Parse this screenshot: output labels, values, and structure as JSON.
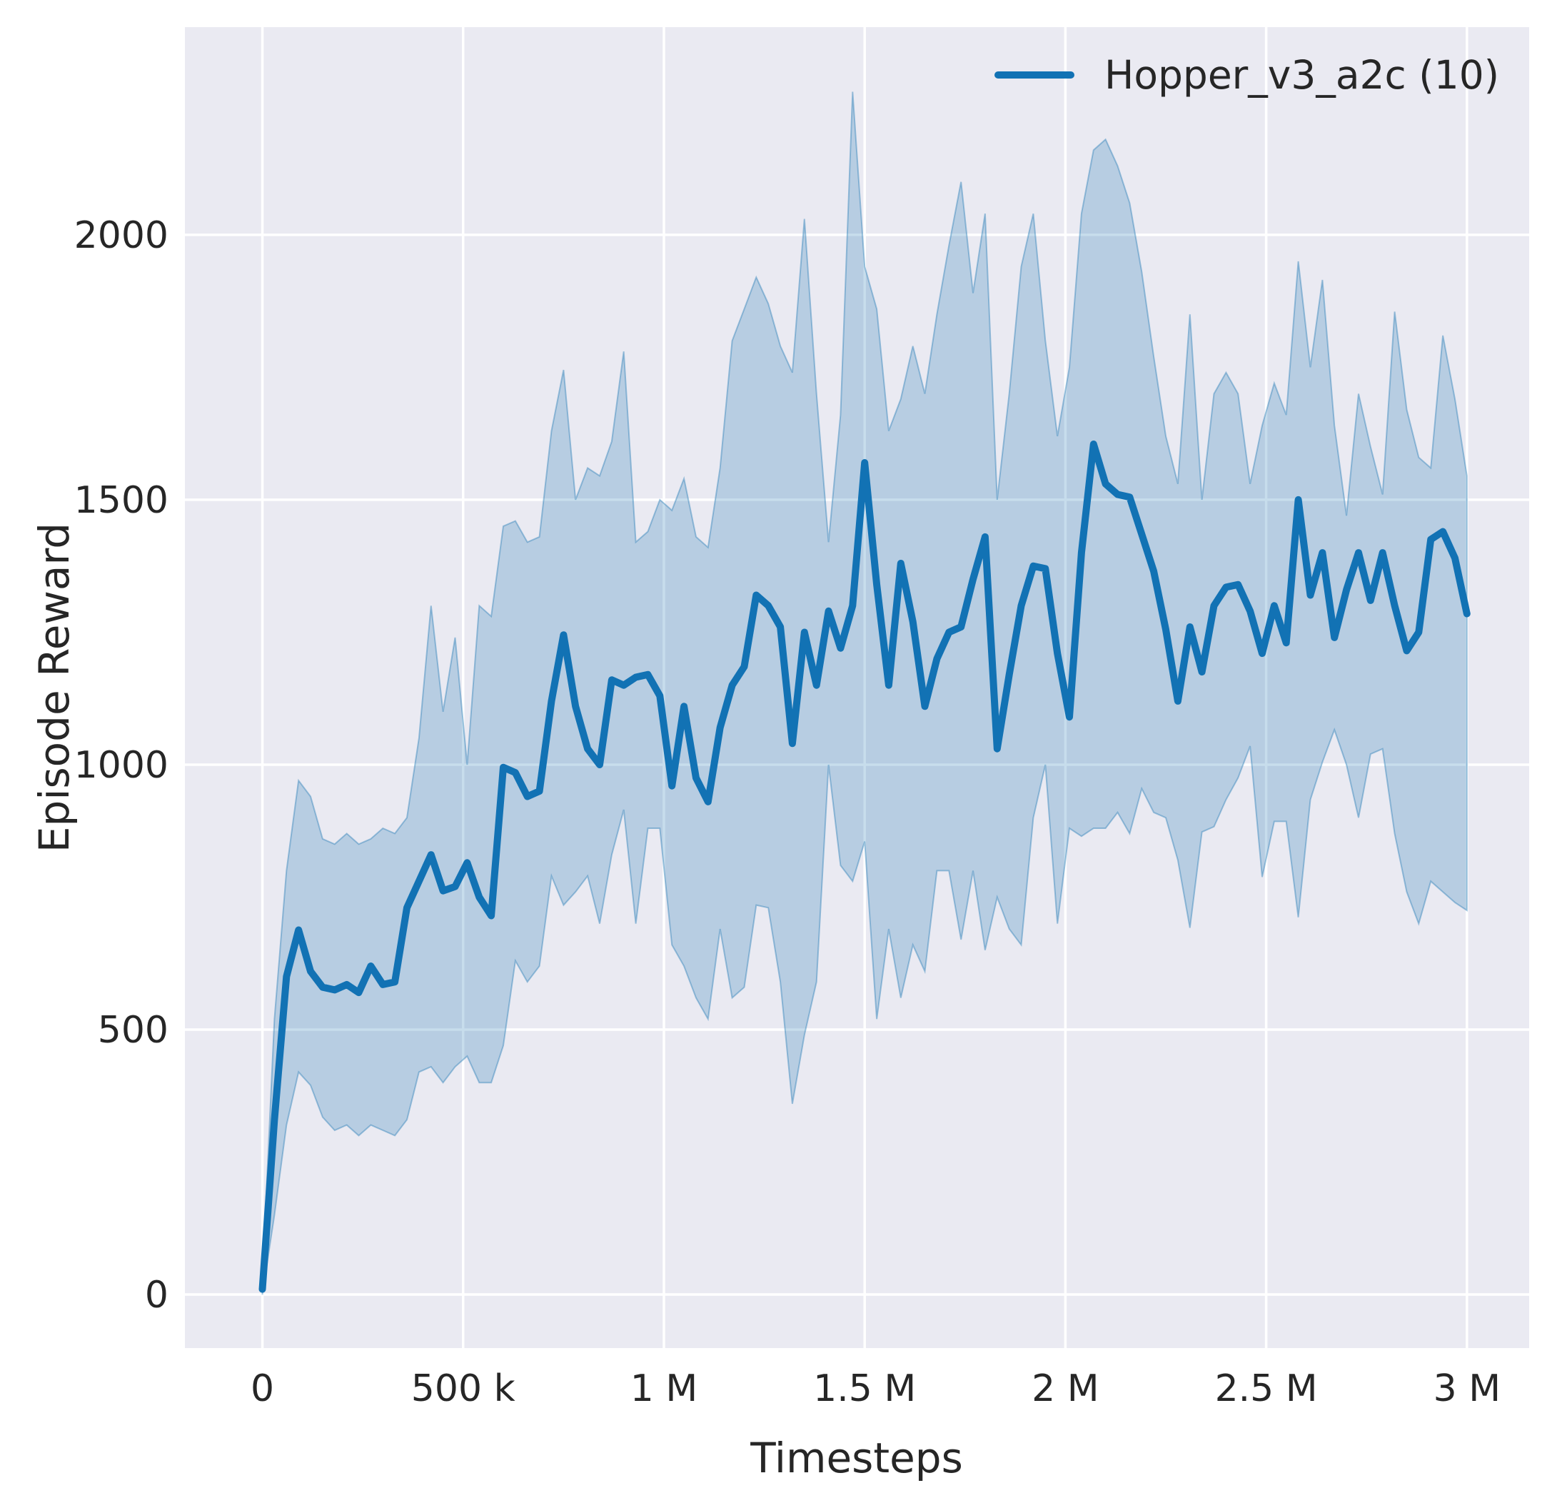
{
  "figure": {
    "background": "#ffffff",
    "plot_background": "#eaeaf2",
    "grid_color": "#ffffff",
    "text_color": "#262626"
  },
  "chart_data": {
    "type": "line",
    "title": "",
    "xlabel": "Timesteps",
    "ylabel": "Episode Reward",
    "grid": true,
    "legend": {
      "position": "upper right",
      "entries": [
        {
          "label": "Hopper_v3_a2c (10)",
          "color": "#1272b4"
        }
      ]
    },
    "xlim": [
      -193000,
      3155000
    ],
    "ylim": [
      -101,
      2392
    ],
    "x_ticks": {
      "values": [
        0,
        500000,
        1000000,
        1500000,
        2000000,
        2500000,
        3000000
      ],
      "labels": [
        "0",
        "500 k",
        "1 M",
        "1.5 M",
        "2 M",
        "2.5 M",
        "3 M"
      ]
    },
    "y_ticks": {
      "values": [
        0,
        500,
        1000,
        1500,
        2000
      ],
      "labels": [
        "0",
        "500",
        "1000",
        "1500",
        "2000"
      ]
    },
    "series": [
      {
        "name": "Hopper_v3_a2c (10)",
        "color": "#1272b4",
        "band_color": "#1f77b4",
        "band_opacity": 0.25,
        "line_width": 10,
        "x": [
          0,
          30000,
          60000,
          90000,
          120000,
          150000,
          180000,
          210000,
          240000,
          270000,
          300000,
          330000,
          360000,
          390000,
          420000,
          450000,
          480000,
          510000,
          540000,
          570000,
          600000,
          630000,
          660000,
          690000,
          720000,
          750000,
          780000,
          810000,
          840000,
          870000,
          900000,
          930000,
          960000,
          990000,
          1020000,
          1050000,
          1080000,
          1110000,
          1140000,
          1170000,
          1200000,
          1230000,
          1260000,
          1290000,
          1320000,
          1350000,
          1380000,
          1410000,
          1440000,
          1470000,
          1500000,
          1530000,
          1560000,
          1590000,
          1620000,
          1650000,
          1680000,
          1710000,
          1740000,
          1770000,
          1800000,
          1830000,
          1860000,
          1890000,
          1920000,
          1950000,
          1980000,
          2010000,
          2040000,
          2070000,
          2100000,
          2130000,
          2160000,
          2190000,
          2220000,
          2250000,
          2280000,
          2310000,
          2340000,
          2370000,
          2400000,
          2430000,
          2460000,
          2490000,
          2520000,
          2550000,
          2580000,
          2610000,
          2640000,
          2670000,
          2700000,
          2730000,
          2760000,
          2790000,
          2820000,
          2850000,
          2880000,
          2910000,
          2940000,
          2970000,
          3000000
        ],
        "mean": [
          10,
          330,
          600,
          688,
          610,
          580,
          575,
          585,
          570,
          620,
          585,
          590,
          730,
          780,
          830,
          762,
          770,
          815,
          750,
          715,
          995,
          985,
          940,
          950,
          1120,
          1245,
          1110,
          1030,
          1000,
          1160,
          1150,
          1165,
          1170,
          1130,
          960,
          1110,
          975,
          930,
          1070,
          1150,
          1185,
          1320,
          1300,
          1260,
          1040,
          1250,
          1150,
          1290,
          1220,
          1300,
          1570,
          1340,
          1150,
          1380,
          1270,
          1110,
          1200,
          1250,
          1260,
          1350,
          1430,
          1030,
          1170,
          1300,
          1375,
          1370,
          1210,
          1090,
          1400,
          1605,
          1530,
          1510,
          1505,
          1435,
          1365,
          1255,
          1120,
          1260,
          1175,
          1300,
          1335,
          1340,
          1290,
          1210,
          1300,
          1230,
          1500,
          1320,
          1400,
          1240,
          1330,
          1400,
          1310,
          1400,
          1300,
          1215,
          1250,
          1425,
          1440,
          1390,
          1285
        ],
        "band_lower": [
          0,
          150,
          320,
          420,
          395,
          335,
          310,
          320,
          300,
          320,
          310,
          300,
          330,
          420,
          430,
          400,
          430,
          450,
          400,
          400,
          470,
          630,
          590,
          620,
          790,
          735,
          760,
          790,
          700,
          830,
          915,
          700,
          880,
          880,
          660,
          620,
          560,
          520,
          690,
          560,
          580,
          735,
          730,
          590,
          360,
          490,
          590,
          1000,
          810,
          780,
          855,
          520,
          690,
          560,
          660,
          610,
          800,
          800,
          670,
          800,
          650,
          750,
          690,
          660,
          900,
          1000,
          700,
          880,
          865,
          880,
          880,
          910,
          870,
          955,
          910,
          900,
          820,
          692,
          873,
          883,
          934,
          975,
          1035,
          788,
          893,
          893,
          712,
          934,
          1005,
          1066,
          1000,
          900,
          1020,
          1030,
          870,
          760,
          700,
          780,
          760,
          740,
          725
        ],
        "band_upper": [
          30,
          520,
          800,
          970,
          940,
          860,
          850,
          870,
          850,
          860,
          880,
          870,
          900,
          1050,
          1300,
          1100,
          1240,
          1000,
          1300,
          1280,
          1450,
          1460,
          1420,
          1430,
          1630,
          1745,
          1500,
          1560,
          1545,
          1610,
          1780,
          1420,
          1440,
          1500,
          1480,
          1540,
          1430,
          1410,
          1560,
          1800,
          1860,
          1920,
          1870,
          1790,
          1740,
          2030,
          1700,
          1420,
          1660,
          2270,
          1940,
          1860,
          1630,
          1690,
          1790,
          1700,
          1850,
          1980,
          2100,
          1890,
          2040,
          1500,
          1700,
          1940,
          2040,
          1800,
          1620,
          1750,
          2040,
          2160,
          2180,
          2130,
          2060,
          1930,
          1770,
          1620,
          1530,
          1850,
          1500,
          1700,
          1740,
          1700,
          1530,
          1640,
          1720,
          1660,
          1950,
          1750,
          1915,
          1640,
          1470,
          1700,
          1600,
          1510,
          1855,
          1670,
          1580,
          1560,
          1810,
          1690,
          1545
        ]
      }
    ]
  }
}
